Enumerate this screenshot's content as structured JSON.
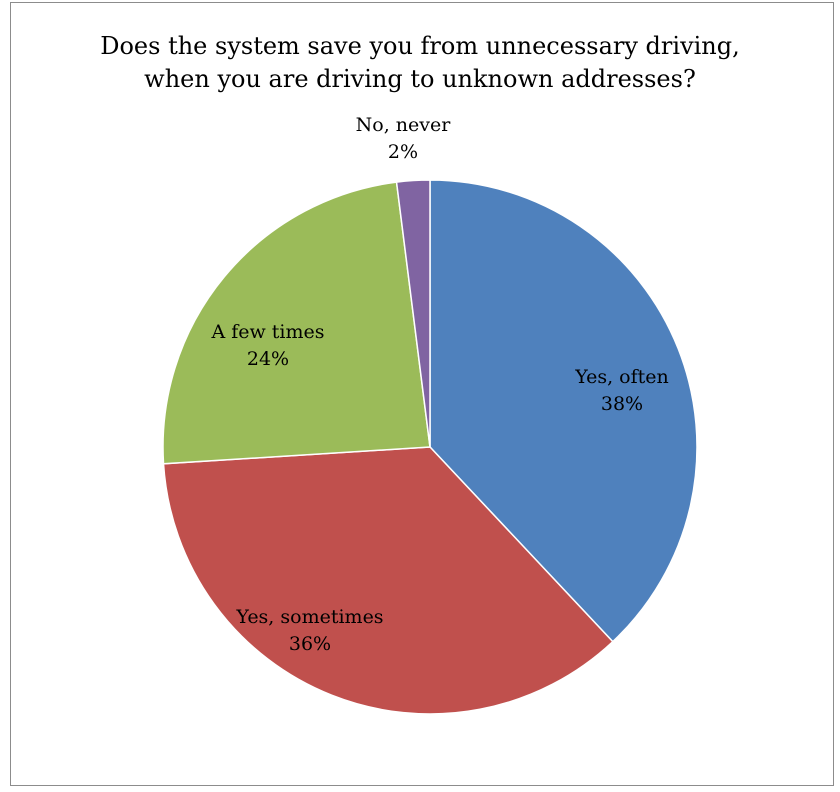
{
  "chart_data": {
    "type": "pie",
    "title_lines": [
      "Does the system save you from unnecessary driving,",
      "when you are driving to unknown addresses?"
    ],
    "slices": [
      {
        "label": "Yes, often",
        "value": 38,
        "value_label": "38%",
        "color": "#4f81bd"
      },
      {
        "label": "Yes, sometimes",
        "value": 36,
        "value_label": "36%",
        "color": "#c0504d"
      },
      {
        "label": "A few times",
        "value": 24,
        "value_label": "24%",
        "color": "#9bbb59"
      },
      {
        "label": "No, never",
        "value": 2,
        "value_label": "2%",
        "color": "#8064a2"
      }
    ],
    "legend": "none",
    "data_labels": "category and percentage"
  }
}
